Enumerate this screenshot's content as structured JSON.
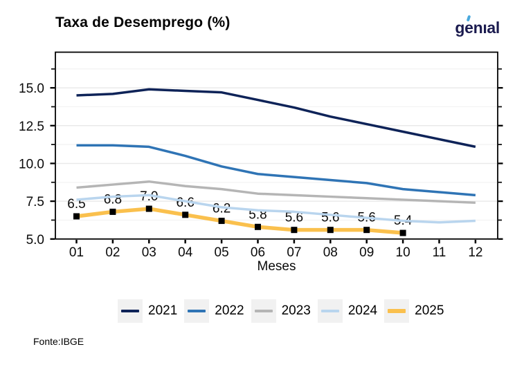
{
  "logo": {
    "text_before_accent": "g",
    "accent_letter": "e",
    "text_after_accent": "nıal",
    "brand_color": "#1b1b4f",
    "accent_color": "#4aa9dd"
  },
  "footer": {
    "source": "Fonte:IBGE"
  },
  "chart_data": {
    "type": "line",
    "title": "Taxa de Desemprego (%)",
    "xlabel": "Meses",
    "ylabel": "",
    "grid": "horizontal-only",
    "legend_position": "bottom",
    "x_categories": [
      "01",
      "02",
      "03",
      "04",
      "05",
      "06",
      "07",
      "08",
      "09",
      "10",
      "11",
      "12"
    ],
    "y_axis": {
      "tick_labels": [
        "5.0",
        "7.5",
        "10.0",
        "12.5",
        "15.0"
      ],
      "tick_values": [
        5.0,
        7.5,
        10.0,
        12.5,
        15.0
      ],
      "minor_tick_values": [
        6.25,
        8.75,
        11.25,
        13.75,
        16.25
      ],
      "range": [
        5.0,
        17.35
      ]
    },
    "colors": {
      "panel_border": "#000000",
      "grid_major": "#e9e9e9",
      "grid_minor": "#f2f2f2",
      "marker": "#000000",
      "legend_key_bg": "#f1f1f1"
    },
    "series": [
      {
        "name": "2021",
        "color": "#0e2358",
        "line_width": 3.5,
        "values": [
          14.5,
          14.6,
          14.9,
          14.8,
          14.7,
          14.2,
          13.7,
          13.1,
          12.6,
          12.1,
          11.6,
          11.1
        ]
      },
      {
        "name": "2022",
        "color": "#2f74b5",
        "line_width": 3.5,
        "values": [
          11.2,
          11.2,
          11.1,
          10.5,
          9.8,
          9.3,
          9.1,
          8.9,
          8.7,
          8.3,
          8.1,
          7.9
        ]
      },
      {
        "name": "2023",
        "color": "#b5b5b5",
        "line_width": 3.5,
        "values": [
          8.4,
          8.6,
          8.8,
          8.5,
          8.3,
          8.0,
          7.9,
          7.8,
          7.7,
          7.6,
          7.5,
          7.4
        ]
      },
      {
        "name": "2024",
        "color": "#b9d5ee",
        "line_width": 3.5,
        "values": [
          7.6,
          7.8,
          7.9,
          7.5,
          7.1,
          6.9,
          6.8,
          6.6,
          6.4,
          6.2,
          6.1,
          6.2
        ]
      },
      {
        "name": "2025",
        "color": "#fac04d",
        "line_width": 5.5,
        "marker": "black-square",
        "show_value_labels": true,
        "values": [
          6.5,
          6.8,
          7.0,
          6.6,
          6.2,
          5.8,
          5.6,
          5.6,
          5.6,
          5.4
        ],
        "value_labels": [
          "6.5",
          "6.8",
          "7.0",
          "6.6",
          "6.2",
          "5.8",
          "5.6",
          "5.6",
          "5.6",
          "5.4"
        ]
      }
    ]
  }
}
